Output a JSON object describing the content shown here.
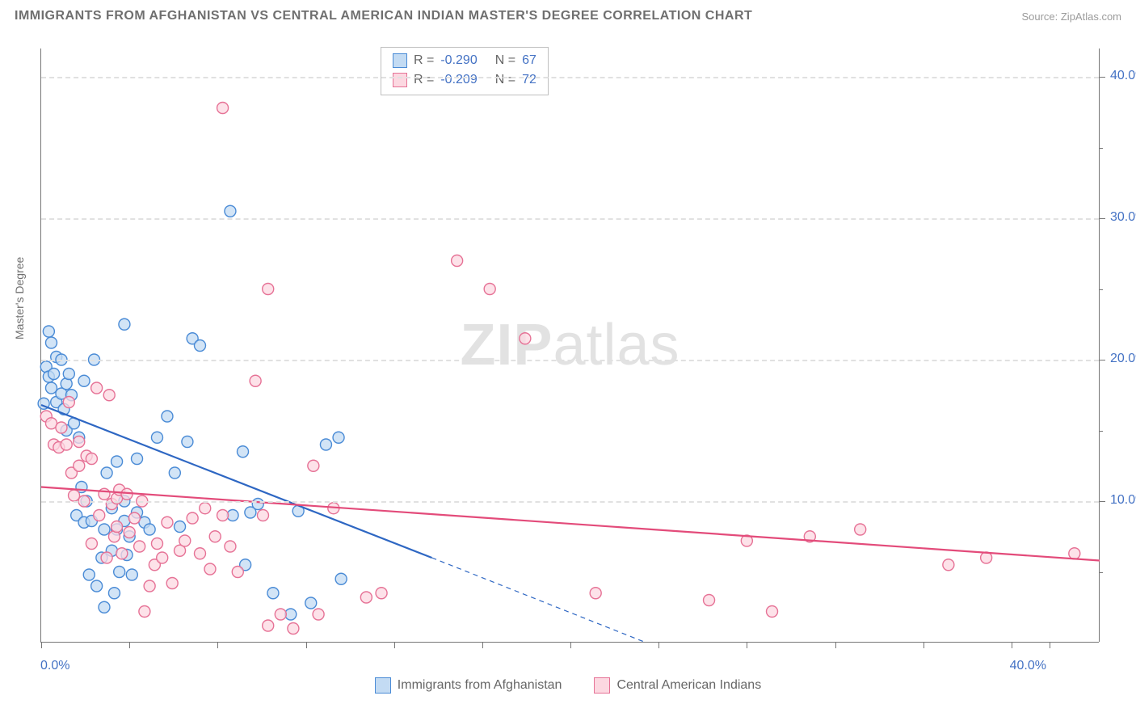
{
  "title": "IMMIGRANTS FROM AFGHANISTAN VS CENTRAL AMERICAN INDIAN MASTER'S DEGREE CORRELATION CHART",
  "source": "Source: ZipAtlas.com",
  "y_axis_label": "Master's Degree",
  "watermark": {
    "bold": "ZIP",
    "rest": "atlas"
  },
  "chart": {
    "type": "scatter",
    "xlim": [
      0,
      42
    ],
    "ylim": [
      0,
      42
    ],
    "x_ticks": [
      0,
      40
    ],
    "x_tick_labels": [
      "0.0%",
      "40.0%"
    ],
    "x_minor_ticks": [
      3.5,
      7,
      10.5,
      14,
      17.5,
      21,
      24.5,
      28,
      31.5,
      35,
      38.5
    ],
    "y_ticks": [
      10,
      20,
      30,
      40
    ],
    "y_tick_labels": [
      "10.0%",
      "20.0%",
      "30.0%",
      "40.0%"
    ],
    "y_minor_ticks": [
      5,
      15,
      25,
      35
    ],
    "grid_color": "#e1e1e1",
    "background": "#ffffff",
    "axis_label_color": "#4472c4",
    "marker_radius": 7,
    "marker_stroke_width": 1.4,
    "trend_line_width": 2.2,
    "series": [
      {
        "id": "afghanistan",
        "label": "Immigrants from Afghanistan",
        "r": "-0.290",
        "n": "67",
        "fill": "#c3dbf3",
        "stroke": "#4a8bd6",
        "trend_color": "#2e67c3",
        "trend": {
          "x1": 0,
          "y1": 16.8,
          "x2": 15.5,
          "y2": 6.0,
          "x2_dash": 24.0,
          "y2_dash": 0
        },
        "points": [
          [
            0.1,
            16.9
          ],
          [
            0.2,
            19.5
          ],
          [
            0.3,
            18.8
          ],
          [
            0.3,
            22.0
          ],
          [
            0.4,
            21.2
          ],
          [
            0.4,
            18.0
          ],
          [
            0.5,
            19.0
          ],
          [
            0.6,
            20.2
          ],
          [
            0.6,
            17.0
          ],
          [
            0.8,
            20.0
          ],
          [
            0.8,
            17.6
          ],
          [
            0.9,
            16.5
          ],
          [
            1.0,
            18.3
          ],
          [
            1.0,
            15.0
          ],
          [
            1.1,
            19.0
          ],
          [
            1.2,
            17.5
          ],
          [
            1.3,
            15.5
          ],
          [
            1.4,
            9.0
          ],
          [
            1.5,
            14.5
          ],
          [
            1.6,
            11.0
          ],
          [
            1.7,
            18.5
          ],
          [
            1.7,
            8.5
          ],
          [
            1.8,
            10.0
          ],
          [
            1.9,
            4.8
          ],
          [
            2.0,
            8.6
          ],
          [
            2.1,
            20.0
          ],
          [
            2.2,
            4.0
          ],
          [
            2.4,
            6.0
          ],
          [
            2.5,
            8.0
          ],
          [
            2.5,
            2.5
          ],
          [
            2.6,
            12.0
          ],
          [
            2.8,
            9.5
          ],
          [
            2.8,
            6.5
          ],
          [
            2.9,
            3.5
          ],
          [
            3.0,
            8.0
          ],
          [
            3.0,
            12.8
          ],
          [
            3.1,
            5.0
          ],
          [
            3.3,
            8.6
          ],
          [
            3.3,
            10.0
          ],
          [
            3.3,
            22.5
          ],
          [
            3.4,
            6.2
          ],
          [
            3.5,
            7.5
          ],
          [
            3.6,
            4.8
          ],
          [
            3.8,
            9.2
          ],
          [
            3.8,
            13.0
          ],
          [
            4.1,
            8.5
          ],
          [
            4.3,
            8.0
          ],
          [
            4.6,
            14.5
          ],
          [
            5.0,
            16.0
          ],
          [
            5.3,
            12.0
          ],
          [
            5.5,
            8.2
          ],
          [
            5.8,
            14.2
          ],
          [
            6.0,
            21.5
          ],
          [
            6.3,
            21.0
          ],
          [
            7.5,
            30.5
          ],
          [
            7.6,
            9.0
          ],
          [
            8.0,
            13.5
          ],
          [
            8.1,
            5.5
          ],
          [
            8.3,
            9.2
          ],
          [
            8.6,
            9.8
          ],
          [
            9.2,
            3.5
          ],
          [
            9.9,
            2.0
          ],
          [
            10.2,
            9.3
          ],
          [
            10.7,
            2.8
          ],
          [
            11.3,
            14.0
          ],
          [
            11.8,
            14.5
          ],
          [
            11.9,
            4.5
          ]
        ]
      },
      {
        "id": "central_american",
        "label": "Central American Indians",
        "r": "-0.209",
        "n": "72",
        "fill": "#fcd8e1",
        "stroke": "#e67296",
        "trend_color": "#e34b7a",
        "trend": {
          "x1": 0,
          "y1": 11.0,
          "x2": 42,
          "y2": 5.8
        },
        "points": [
          [
            0.2,
            16.0
          ],
          [
            0.4,
            15.5
          ],
          [
            0.5,
            14.0
          ],
          [
            0.7,
            13.8
          ],
          [
            0.8,
            15.2
          ],
          [
            1.0,
            14.0
          ],
          [
            1.1,
            17.0
          ],
          [
            1.2,
            12.0
          ],
          [
            1.3,
            10.4
          ],
          [
            1.5,
            12.5
          ],
          [
            1.5,
            14.2
          ],
          [
            1.7,
            10.0
          ],
          [
            1.8,
            13.2
          ],
          [
            2.0,
            13.0
          ],
          [
            2.0,
            7.0
          ],
          [
            2.2,
            18.0
          ],
          [
            2.3,
            9.0
          ],
          [
            2.5,
            10.5
          ],
          [
            2.6,
            6.0
          ],
          [
            2.7,
            17.5
          ],
          [
            2.8,
            9.8
          ],
          [
            2.9,
            7.5
          ],
          [
            3.0,
            10.2
          ],
          [
            3.0,
            8.2
          ],
          [
            3.1,
            10.8
          ],
          [
            3.2,
            6.3
          ],
          [
            3.4,
            10.5
          ],
          [
            3.5,
            7.8
          ],
          [
            3.7,
            8.8
          ],
          [
            3.9,
            6.8
          ],
          [
            4.0,
            10.0
          ],
          [
            4.1,
            2.2
          ],
          [
            4.3,
            4.0
          ],
          [
            4.5,
            5.5
          ],
          [
            4.6,
            7.0
          ],
          [
            4.8,
            6.0
          ],
          [
            5.0,
            8.5
          ],
          [
            5.2,
            4.2
          ],
          [
            5.5,
            6.5
          ],
          [
            5.7,
            7.2
          ],
          [
            6.0,
            8.8
          ],
          [
            6.3,
            6.3
          ],
          [
            6.5,
            9.5
          ],
          [
            6.7,
            5.2
          ],
          [
            6.9,
            7.5
          ],
          [
            7.2,
            9.0
          ],
          [
            7.2,
            37.8
          ],
          [
            7.5,
            6.8
          ],
          [
            7.8,
            5.0
          ],
          [
            8.5,
            18.5
          ],
          [
            8.8,
            9.0
          ],
          [
            9.0,
            25.0
          ],
          [
            9.0,
            1.2
          ],
          [
            9.5,
            2.0
          ],
          [
            10.0,
            1.0
          ],
          [
            10.8,
            12.5
          ],
          [
            11.0,
            2.0
          ],
          [
            11.6,
            9.5
          ],
          [
            12.9,
            3.2
          ],
          [
            13.5,
            3.5
          ],
          [
            16.5,
            27.0
          ],
          [
            17.8,
            25.0
          ],
          [
            19.2,
            21.5
          ],
          [
            22.0,
            3.5
          ],
          [
            26.5,
            3.0
          ],
          [
            28.0,
            7.2
          ],
          [
            29.0,
            2.2
          ],
          [
            30.5,
            7.5
          ],
          [
            32.5,
            8.0
          ],
          [
            36.0,
            5.5
          ],
          [
            37.5,
            6.0
          ],
          [
            41.0,
            6.3
          ]
        ]
      }
    ]
  },
  "legend_top": {
    "border_color": "#bfbfbf",
    "text_color": "#666666",
    "value_color": "#4472c4"
  },
  "legend_bottom": {
    "text_color": "#666666"
  },
  "colors": {
    "title": "#6f6f6f",
    "source": "#9b9b9b",
    "axis_line": "#767676"
  },
  "fontsize": {
    "title": 16,
    "axis": 16,
    "label": 14,
    "legend": 16
  }
}
